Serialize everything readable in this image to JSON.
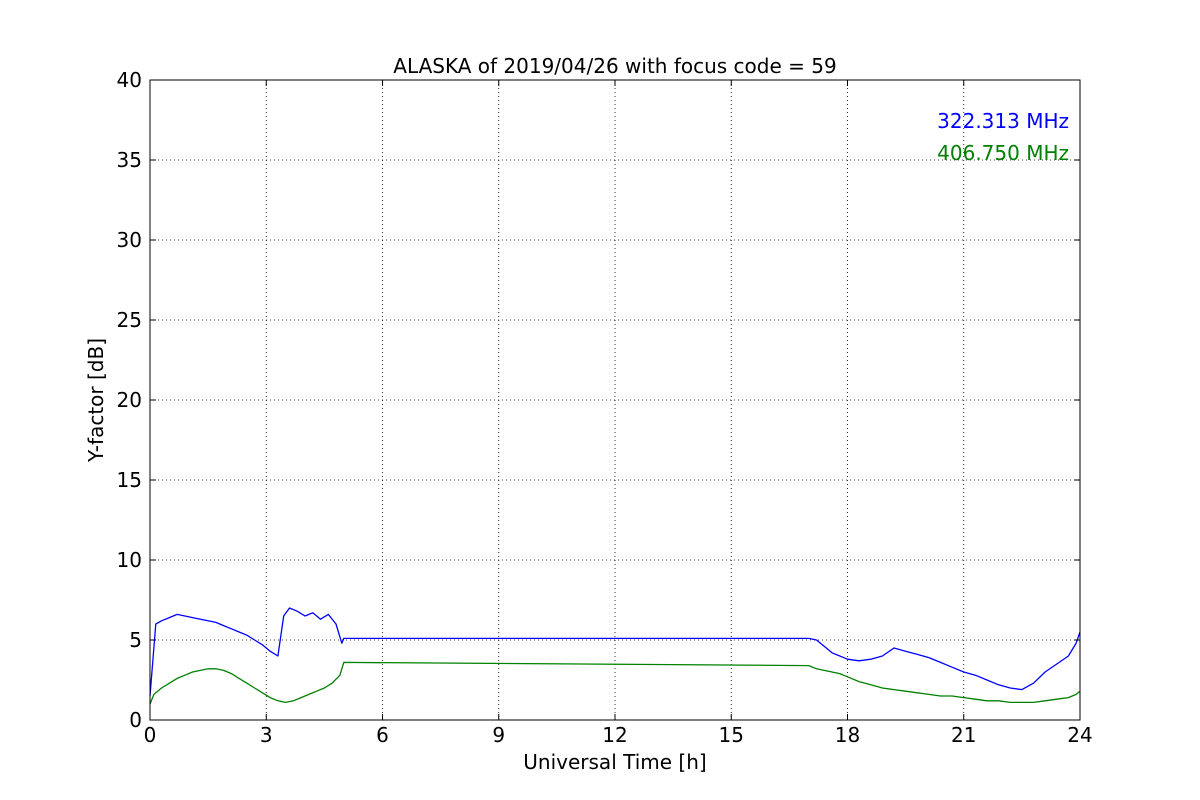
{
  "chart_data": {
    "type": "line",
    "title": "ALASKA of 2019/04/26 with focus code = 59",
    "xlabel": "Universal Time [h]",
    "ylabel": "Y-factor [dB]",
    "xlim": [
      0,
      24
    ],
    "ylim": [
      0,
      40
    ],
    "xticks": [
      0,
      3,
      6,
      9,
      12,
      15,
      18,
      21,
      24
    ],
    "yticks": [
      0,
      5,
      10,
      15,
      20,
      25,
      30,
      35,
      40
    ],
    "grid": true,
    "legend_position": "top-right",
    "series": [
      {
        "name": "322.313 MHz",
        "color": "#0000ff",
        "x": [
          0.0,
          0.15,
          0.3,
          0.5,
          0.7,
          0.9,
          1.1,
          1.3,
          1.5,
          1.7,
          1.9,
          2.1,
          2.3,
          2.5,
          2.7,
          2.9,
          3.1,
          3.3,
          3.45,
          3.6,
          3.8,
          4.0,
          4.2,
          4.4,
          4.6,
          4.8,
          4.95,
          5.0,
          17.0,
          17.2,
          17.4,
          17.6,
          17.8,
          18.0,
          18.3,
          18.6,
          18.9,
          19.2,
          19.5,
          19.8,
          20.1,
          20.4,
          20.7,
          21.0,
          21.3,
          21.6,
          21.9,
          22.2,
          22.5,
          22.8,
          23.1,
          23.4,
          23.7,
          23.9,
          24.0
        ],
        "y": [
          1.5,
          6.0,
          6.2,
          6.4,
          6.6,
          6.5,
          6.4,
          6.3,
          6.2,
          6.1,
          5.9,
          5.7,
          5.5,
          5.3,
          5.0,
          4.7,
          4.3,
          4.0,
          6.5,
          7.0,
          6.8,
          6.5,
          6.7,
          6.3,
          6.6,
          6.0,
          4.8,
          5.1,
          5.1,
          5.0,
          4.6,
          4.2,
          4.0,
          3.8,
          3.7,
          3.8,
          4.0,
          4.5,
          4.3,
          4.1,
          3.9,
          3.6,
          3.3,
          3.0,
          2.8,
          2.5,
          2.2,
          2.0,
          1.9,
          2.3,
          3.0,
          3.5,
          4.0,
          4.8,
          5.5
        ]
      },
      {
        "name": "406.750 MHz",
        "color": "#008000",
        "x": [
          0.0,
          0.1,
          0.3,
          0.5,
          0.7,
          0.9,
          1.1,
          1.3,
          1.5,
          1.7,
          1.9,
          2.1,
          2.3,
          2.5,
          2.7,
          2.9,
          3.1,
          3.3,
          3.5,
          3.7,
          3.9,
          4.1,
          4.3,
          4.5,
          4.7,
          4.9,
          5.0,
          17.0,
          17.2,
          17.4,
          17.6,
          17.8,
          18.0,
          18.3,
          18.6,
          18.9,
          19.2,
          19.5,
          19.8,
          20.1,
          20.4,
          20.7,
          21.0,
          21.3,
          21.6,
          21.9,
          22.2,
          22.5,
          22.8,
          23.1,
          23.4,
          23.7,
          23.9,
          24.0
        ],
        "y": [
          1.0,
          1.6,
          2.0,
          2.3,
          2.6,
          2.8,
          3.0,
          3.1,
          3.2,
          3.2,
          3.1,
          2.9,
          2.6,
          2.3,
          2.0,
          1.7,
          1.4,
          1.2,
          1.1,
          1.2,
          1.4,
          1.6,
          1.8,
          2.0,
          2.3,
          2.8,
          3.6,
          3.4,
          3.2,
          3.1,
          3.0,
          2.9,
          2.7,
          2.4,
          2.2,
          2.0,
          1.9,
          1.8,
          1.7,
          1.6,
          1.5,
          1.5,
          1.4,
          1.3,
          1.2,
          1.2,
          1.1,
          1.1,
          1.1,
          1.2,
          1.3,
          1.4,
          1.6,
          1.8
        ]
      }
    ]
  }
}
